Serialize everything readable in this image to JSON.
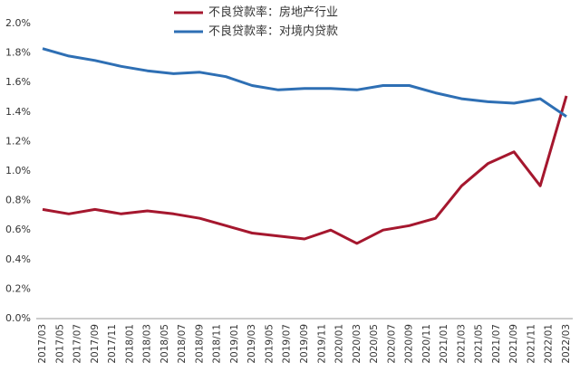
{
  "chart_data": {
    "type": "line",
    "xticks": [
      "2017/03",
      "2017/05",
      "2017/07",
      "2017/09",
      "2017/11",
      "2018/01",
      "2018/03",
      "2018/05",
      "2018/07",
      "2018/09",
      "2018/11",
      "2019/01",
      "2019/03",
      "2019/05",
      "2019/07",
      "2019/09",
      "2019/11",
      "2020/01",
      "2020/03",
      "2020/05",
      "2020/07",
      "2020/09",
      "2020/11",
      "2021/01",
      "2021/03",
      "2021/05",
      "2021/07",
      "2021/09",
      "2021/11",
      "2022/01",
      "2022/03"
    ],
    "series": [
      {
        "name": "不良贷款率：房地产行业",
        "color": "#a5172e",
        "values": [
          0.74,
          0.71,
          0.74,
          0.71,
          0.73,
          0.71,
          0.68,
          0.63,
          0.58,
          0.56,
          0.54,
          0.6,
          0.51,
          0.6,
          0.63,
          0.68,
          0.9,
          1.05,
          1.13,
          0.9,
          1.51
        ]
      },
      {
        "name": "不良贷款率：对境内贷款",
        "color": "#2e6fb4",
        "values": [
          1.83,
          1.78,
          1.75,
          1.71,
          1.68,
          1.66,
          1.67,
          1.64,
          1.58,
          1.55,
          1.56,
          1.56,
          1.55,
          1.58,
          1.58,
          1.53,
          1.49,
          1.47,
          1.46,
          1.49,
          1.37
        ]
      }
    ],
    "ylim": [
      0,
      2.0
    ],
    "yticks": [
      {
        "value": 0,
        "label": "0.0%"
      },
      {
        "value": 0.2,
        "label": "0.2%"
      },
      {
        "value": 0.4,
        "label": "0.4%"
      },
      {
        "value": 0.6,
        "label": "0.6%"
      },
      {
        "value": 0.8,
        "label": "0.8%"
      },
      {
        "value": 1.0,
        "label": "1.0%"
      },
      {
        "value": 1.2,
        "label": "1.2%"
      },
      {
        "value": 1.4,
        "label": "1.4%"
      },
      {
        "value": 1.6,
        "label": "1.6%"
      },
      {
        "value": 1.8,
        "label": "1.8%"
      },
      {
        "value": 2.0,
        "label": "2.0%"
      }
    ],
    "legend": "top"
  }
}
